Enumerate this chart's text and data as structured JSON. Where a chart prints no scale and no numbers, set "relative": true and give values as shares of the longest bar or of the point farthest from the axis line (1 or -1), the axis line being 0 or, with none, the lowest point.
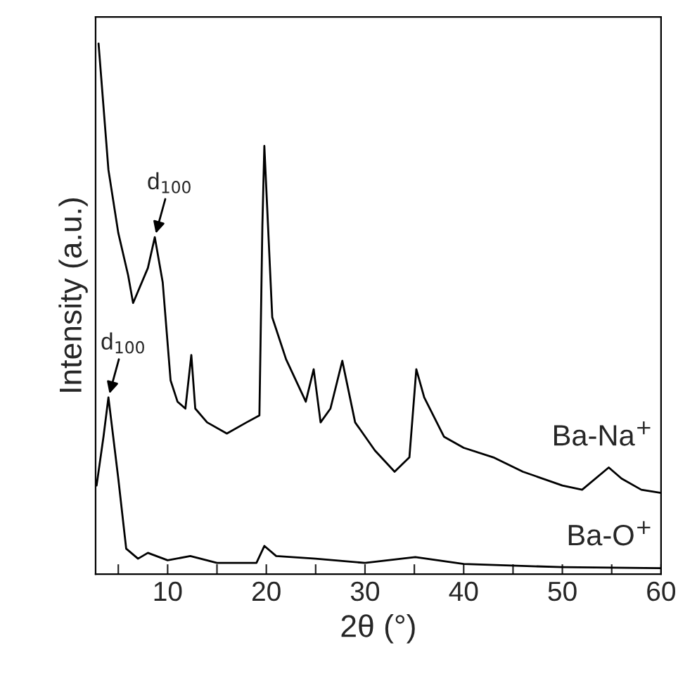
{
  "chart_data": {
    "type": "line",
    "relative": true,
    "xlabel": "2θ (°)",
    "ylabel": "Intensity (a.u.)",
    "xlim": [
      2.7,
      60
    ],
    "xticks": [
      {
        "value": 5,
        "label": null
      },
      10,
      {
        "value": 15,
        "label": null
      },
      20,
      {
        "value": 25,
        "label": null
      },
      30,
      {
        "value": 35,
        "label": null
      },
      40,
      {
        "value": 45,
        "label": null
      },
      50,
      {
        "value": 55,
        "label": null
      },
      60
    ],
    "tick_labels": "x",
    "grid": false,
    "legend": false,
    "marker": "none",
    "line_style": "solid",
    "series": [
      {
        "name": "Ba-Na$^{+}$",
        "color": "#000000",
        "x": [
          3.0,
          4,
          5,
          6,
          6.5,
          8,
          8.7,
          9.5,
          10.3,
          11,
          11.8,
          12.4,
          12.8,
          14,
          16,
          18,
          19.3,
          19.6,
          19.8,
          20.6,
          22,
          24,
          24.8,
          25.5,
          26.5,
          27.7,
          29,
          31,
          33,
          34.5,
          35.2,
          36,
          38,
          40,
          43,
          46,
          50,
          52,
          54.7,
          56,
          58,
          60
        ],
        "values": [
          1.0,
          0.762,
          0.643,
          0.563,
          0.511,
          0.577,
          0.635,
          0.55,
          0.365,
          0.325,
          0.312,
          0.413,
          0.312,
          0.286,
          0.265,
          0.286,
          0.299,
          0.656,
          0.807,
          0.484,
          0.405,
          0.325,
          0.386,
          0.286,
          0.312,
          0.402,
          0.286,
          0.233,
          0.193,
          0.22,
          0.386,
          0.333,
          0.259,
          0.238,
          0.22,
          0.193,
          0.167,
          0.159,
          0.201,
          0.18,
          0.159,
          0.153
        ]
      },
      {
        "name": "Ba-O$^{+}$",
        "color": "#000000",
        "x": [
          2.8,
          3.5,
          4.0,
          5,
          5.8,
          7,
          8,
          10,
          12.3,
          15,
          19,
          19.8,
          21,
          25,
          30,
          35.1,
          40,
          50,
          60
        ],
        "values": [
          0.167,
          0.259,
          0.333,
          0.18,
          0.048,
          0.029,
          0.04,
          0.026,
          0.034,
          0.021,
          0.021,
          0.053,
          0.034,
          0.029,
          0.021,
          0.032,
          0.019,
          0.013,
          0.011
        ]
      }
    ],
    "annotations": [
      {
        "text": "d$_{100}$",
        "x": 8.7,
        "y": 0.635
      },
      {
        "text": "d$_{100}$",
        "x": 4.0,
        "y": 0.333
      }
    ]
  }
}
